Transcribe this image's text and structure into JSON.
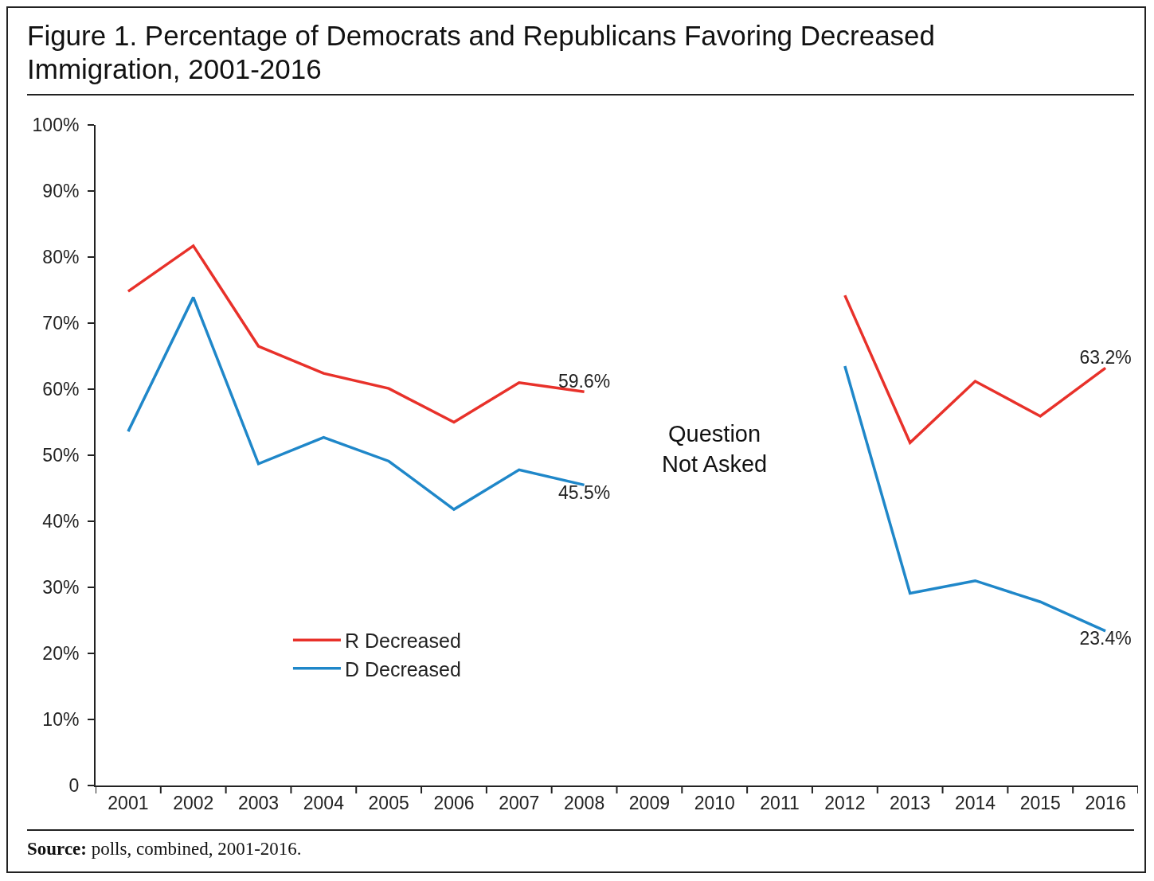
{
  "chart_data": {
    "type": "line",
    "title": "Figure 1. Percentage of Democrats and Republicans Favoring Decreased Immigration, 2001-2016",
    "categories": [
      "2001",
      "2002",
      "2003",
      "2004",
      "2005",
      "2006",
      "2007",
      "2008",
      "2009",
      "2010",
      "2011",
      "2012",
      "2013",
      "2014",
      "2015",
      "2016"
    ],
    "series": [
      {
        "name": "R Decreased",
        "color": "#e8312a",
        "values": [
          74.8,
          81.7,
          66.5,
          62.4,
          60.1,
          55.0,
          61.0,
          59.6,
          null,
          null,
          null,
          74.2,
          51.9,
          61.2,
          55.9,
          63.2
        ],
        "value_labels": [
          null,
          null,
          null,
          null,
          null,
          null,
          null,
          "59.6%",
          null,
          null,
          null,
          null,
          null,
          null,
          null,
          "63.2%"
        ]
      },
      {
        "name": "D Decreased",
        "color": "#1f87c9",
        "values": [
          53.6,
          73.9,
          48.7,
          52.7,
          49.1,
          41.8,
          47.8,
          45.5,
          null,
          null,
          null,
          63.5,
          29.1,
          31.0,
          27.8,
          23.4
        ],
        "value_labels": [
          null,
          null,
          null,
          null,
          null,
          null,
          null,
          "45.5%",
          null,
          null,
          null,
          null,
          null,
          null,
          null,
          "23.4%"
        ]
      }
    ],
    "ylim": [
      0,
      100
    ],
    "yticks": [
      {
        "value": 0,
        "label": "0"
      },
      {
        "value": 10,
        "label": "10%"
      },
      {
        "value": 20,
        "label": "20%"
      },
      {
        "value": 30,
        "label": "30%"
      },
      {
        "value": 40,
        "label": "40%"
      },
      {
        "value": 50,
        "label": "50%"
      },
      {
        "value": 60,
        "label": "60%"
      },
      {
        "value": 70,
        "label": "70%"
      },
      {
        "value": 80,
        "label": "80%"
      },
      {
        "value": 90,
        "label": "90%"
      },
      {
        "value": 100,
        "label": "100%"
      }
    ],
    "grid": false,
    "legend": "bottom left",
    "marker": "none",
    "line_style": "solid",
    "annotations": [
      "Question\nNot Asked",
      "Source: polls, combined, 2001-2016."
    ]
  }
}
